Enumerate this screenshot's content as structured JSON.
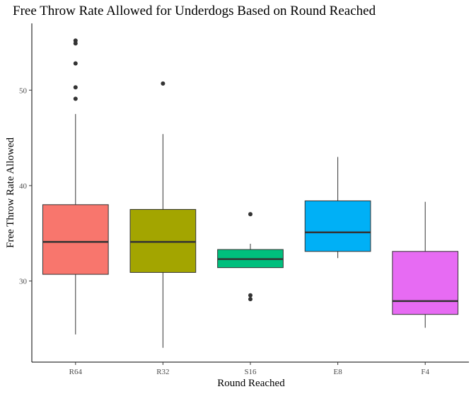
{
  "chart_data": {
    "type": "box",
    "title": "Free Throw Rate Allowed for Underdogs Based on Round Reached",
    "xlabel": "Round Reached",
    "ylabel": "Free Throw Rate Allowed",
    "ylim": [
      21.5,
      57.0
    ],
    "yticks": [
      30,
      40,
      50
    ],
    "grid": false,
    "legend": "none",
    "categories": [
      "R64",
      "R32",
      "S16",
      "E8",
      "F4"
    ],
    "colors": [
      "#F8766D",
      "#A3A500",
      "#00BF7D",
      "#00B0F6",
      "#E76BF3"
    ],
    "boxes": [
      {
        "category": "R64",
        "whisker_low": 24.4,
        "q1": 30.7,
        "median": 34.1,
        "q3": 38.0,
        "whisker_high": 47.5,
        "outliers": [
          49.1,
          50.3,
          52.8,
          54.9,
          55.2
        ]
      },
      {
        "category": "R32",
        "whisker_low": 23.0,
        "q1": 30.9,
        "median": 34.1,
        "q3": 37.5,
        "whisker_high": 45.4,
        "outliers": [
          50.7
        ]
      },
      {
        "category": "S16",
        "whisker_low": 31.4,
        "q1": 31.4,
        "median": 32.3,
        "q3": 33.3,
        "whisker_high": 33.9,
        "outliers": [
          28.1,
          28.5,
          37.0
        ]
      },
      {
        "category": "E8",
        "whisker_low": 32.4,
        "q1": 33.1,
        "median": 35.1,
        "q3": 38.4,
        "whisker_high": 43.0,
        "outliers": []
      },
      {
        "category": "F4",
        "whisker_low": 25.1,
        "q1": 26.5,
        "median": 27.9,
        "q3": 33.1,
        "whisker_high": 38.3,
        "outliers": []
      }
    ]
  }
}
